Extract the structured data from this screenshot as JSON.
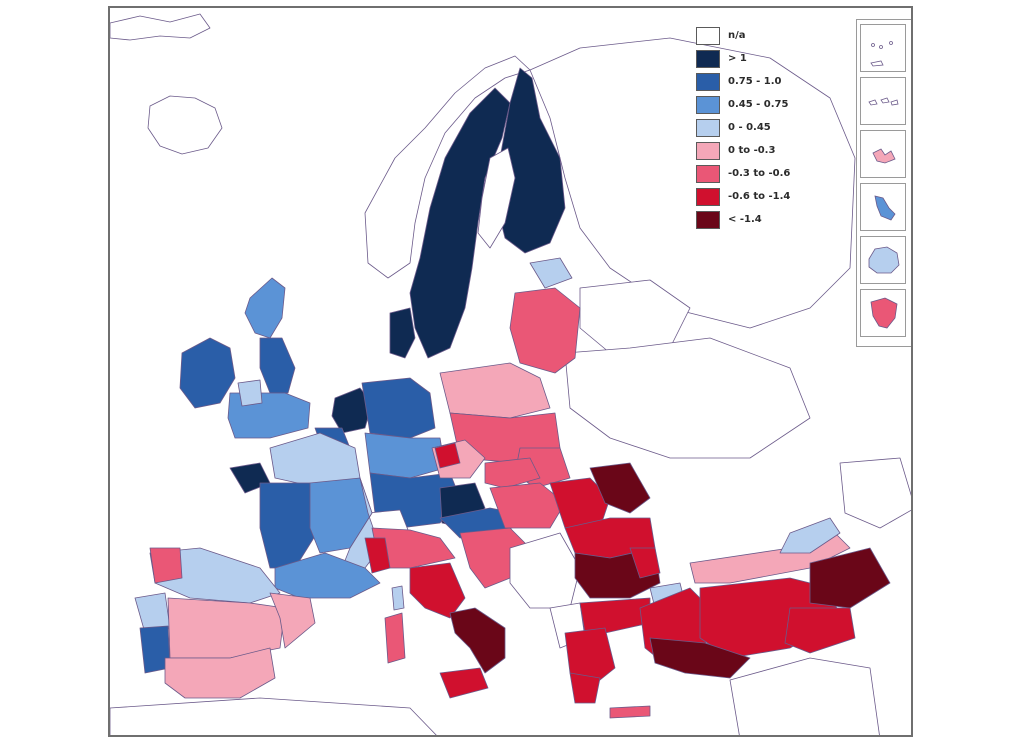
{
  "legend": {
    "items": [
      {
        "label": "n/a",
        "color": "#ffffff"
      },
      {
        "label": "> 1",
        "color": "#0f2a52"
      },
      {
        "label": "0.75 - 1.0",
        "color": "#2a5ea8"
      },
      {
        "label": "0.45 - 0.75",
        "color": "#5b93d6"
      },
      {
        "label": "0 - 0.45",
        "color": "#b6cfee"
      },
      {
        "label": "0 to -0.3",
        "color": "#f4a7b8"
      },
      {
        "label": "-0.3 to -0.6",
        "color": "#ea5776"
      },
      {
        "label": "-0.6 to -1.4",
        "color": "#d0102e"
      },
      {
        "label": "< -1.4",
        "color": "#6a0618"
      }
    ]
  },
  "colors": {
    "border": "#6b5a8a",
    "sea": "#ffffff",
    "frame": "#6f6f6f"
  },
  "insets": [
    {
      "name": "canary-islands",
      "color": "#ffffff"
    },
    {
      "name": "madeira-azores",
      "color": "#ffffff"
    },
    {
      "name": "guadeloupe",
      "color": "#f4a7b8"
    },
    {
      "name": "martinique",
      "color": "#5b93d6"
    },
    {
      "name": "reunion",
      "color": "#b6cfee"
    },
    {
      "name": "french-guiana",
      "color": "#ea5776"
    }
  ]
}
